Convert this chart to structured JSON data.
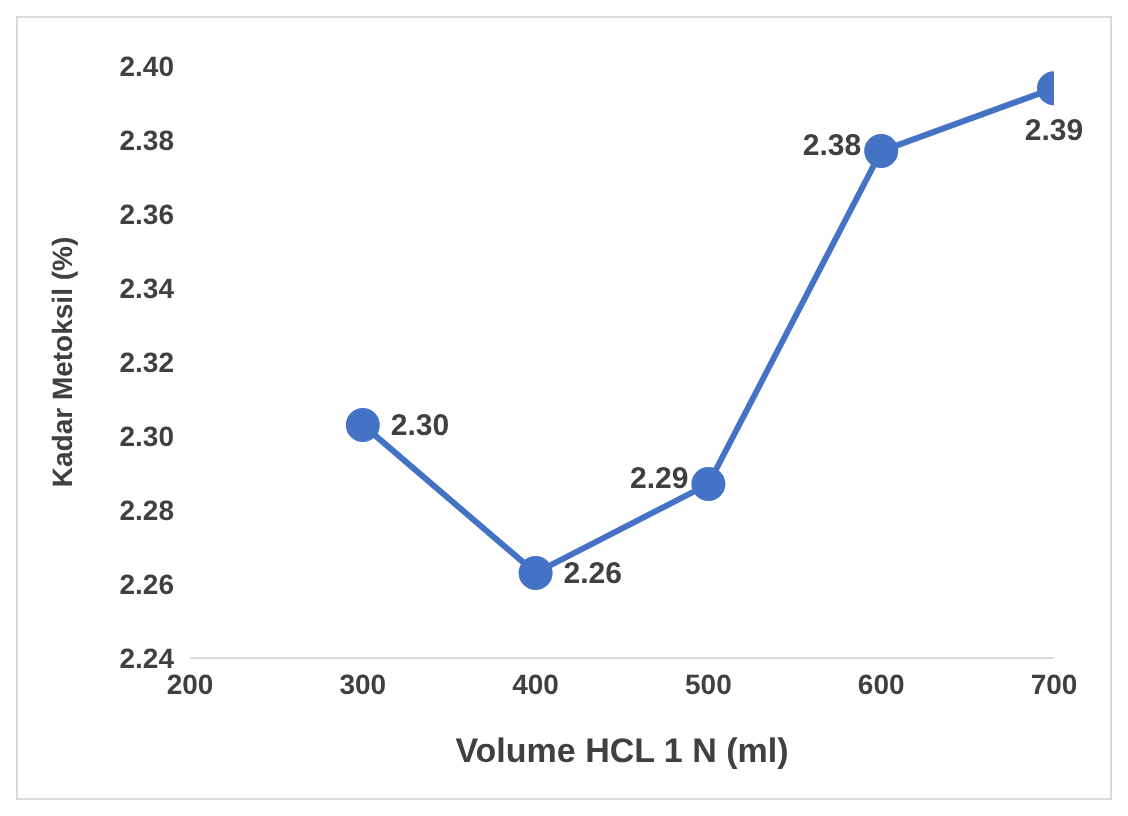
{
  "chart_data": {
    "type": "line",
    "xlabel": "Volume HCL 1 N (ml)",
    "ylabel": "Kadar Metoksil (%)",
    "x": [
      300,
      400,
      500,
      600,
      700
    ],
    "series": [
      {
        "color": "#4472c4",
        "values": [
          2.303,
          2.263,
          2.287,
          2.377,
          2.394
        ],
        "value_labels": [
          "2.30",
          "2.26",
          "2.29",
          "2.38",
          "2.39"
        ]
      }
    ],
    "xlim": [
      200,
      700
    ],
    "xticks": [
      200,
      300,
      400,
      500,
      600,
      700
    ],
    "ylim": [
      2.24,
      2.4
    ],
    "yticks": [
      {
        "value": 2.24,
        "label": "2.24"
      },
      {
        "value": 2.26,
        "label": "2.26"
      },
      {
        "value": 2.28,
        "label": "2.28"
      },
      {
        "value": 2.3,
        "label": "2.30"
      },
      {
        "value": 2.32,
        "label": "2.32"
      },
      {
        "value": 2.34,
        "label": "2.34"
      },
      {
        "value": 2.36,
        "label": "2.36"
      },
      {
        "value": 2.38,
        "label": "2.38"
      },
      {
        "value": 2.4,
        "label": "2.40"
      }
    ],
    "grid": false,
    "marker": "circle",
    "line_style": "solid",
    "legend": false
  }
}
